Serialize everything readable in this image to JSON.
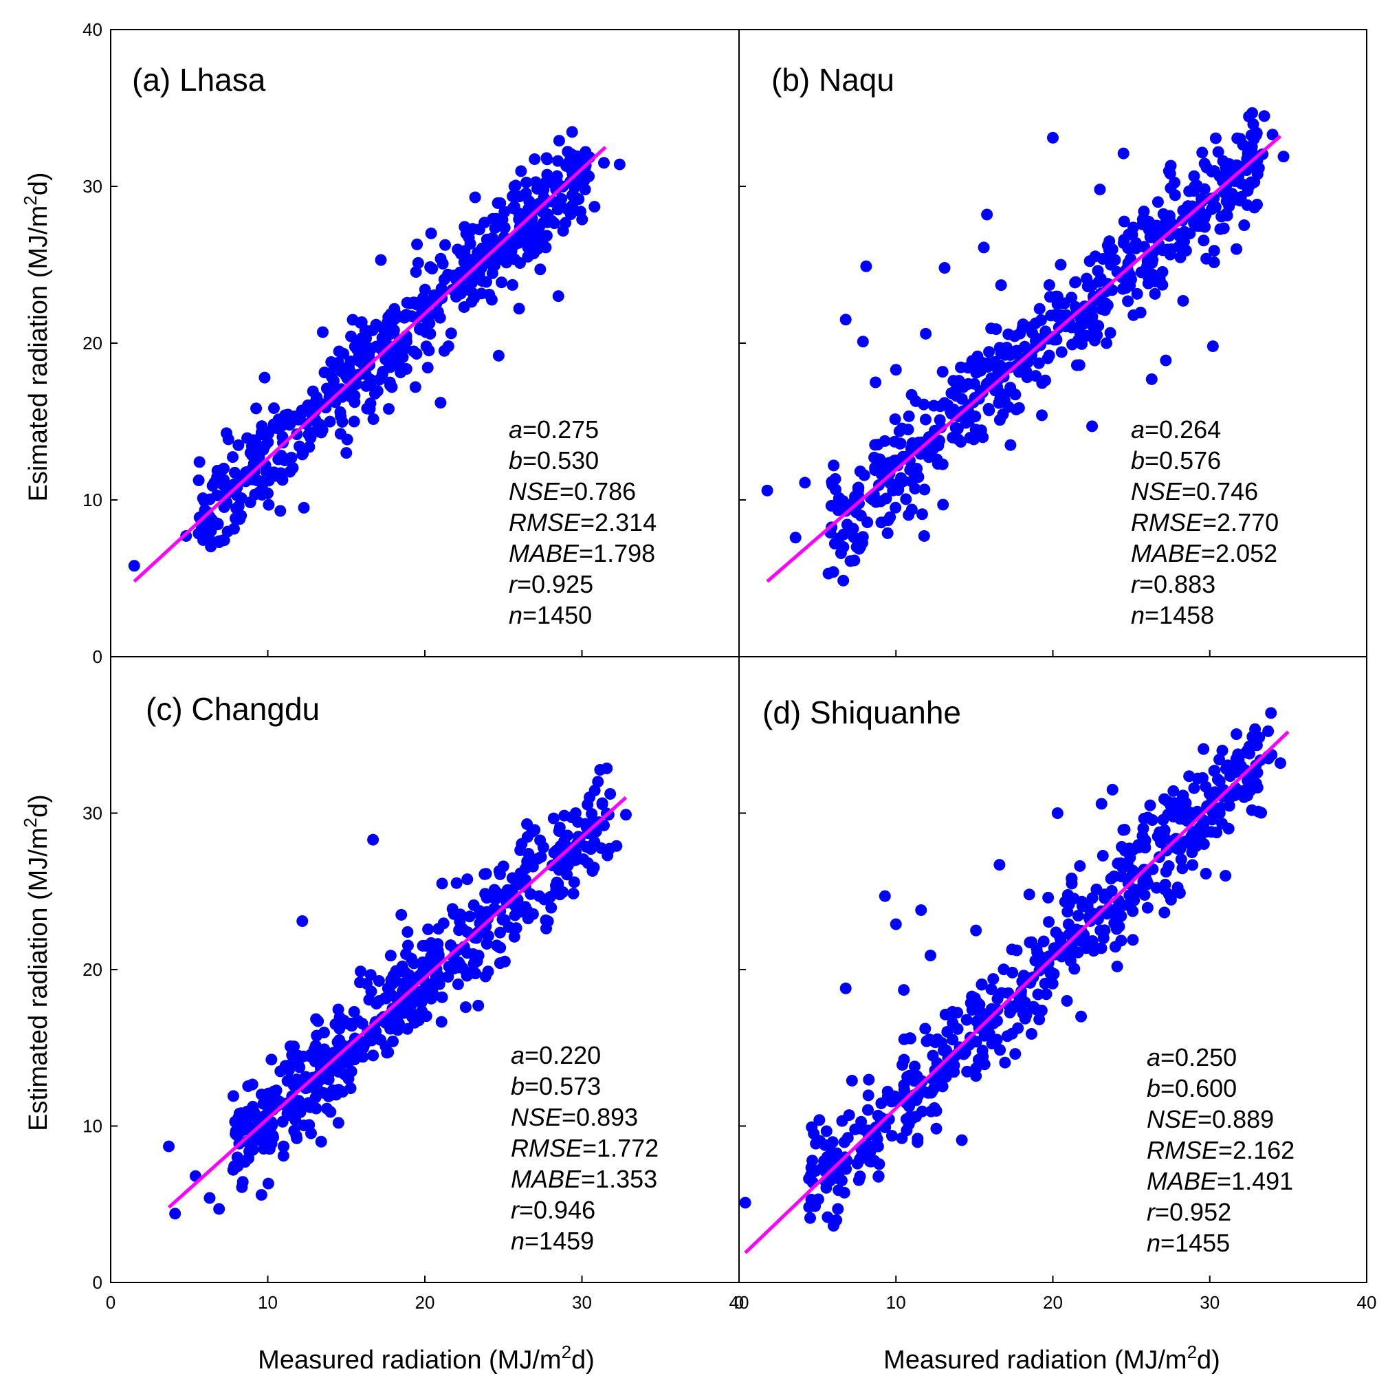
{
  "colors": {
    "points": "#0000ff",
    "fit_line": "#ff00ff",
    "axes": "#000000",
    "background": "#ffffff"
  },
  "axis_titles": {
    "x": {
      "pre": "Measured radiation (MJ/m",
      "sup": "2",
      "post": "d)"
    },
    "y_top": {
      "pre": "Esimated radiation (MJ/m",
      "sup": "2",
      "post": "d)"
    },
    "y_bottom": {
      "pre": "Estimated radiation (MJ/m",
      "sup": "2",
      "post": "d)"
    }
  },
  "chart_data": [
    {
      "type": "scatter",
      "id": "lhasa",
      "title": "(a) Lhasa",
      "xlim": [
        0,
        40
      ],
      "ylim": [
        0,
        40
      ],
      "xticks": [
        10,
        20,
        30
      ],
      "yticks": [
        10,
        20,
        30
      ],
      "xtick_labels": [
        "",
        "",
        ""
      ],
      "ytick_labels": [
        "0",
        "10",
        "20",
        "30",
        "40"
      ],
      "fit_line": {
        "x": [
          1.5,
          31.5
        ],
        "y": [
          4.8,
          32.5
        ]
      },
      "stats": [
        {
          "name": "a",
          "value": "=0.275"
        },
        {
          "name": "b",
          "value": "=0.530"
        },
        {
          "name": "NSE",
          "value": "=0.786"
        },
        {
          "name": "RMSE",
          "value": "=2.314"
        },
        {
          "name": "MABE",
          "value": "=1.798"
        },
        {
          "name": "r",
          "value": "=0.925"
        },
        {
          "name": "n",
          "value": "=1450"
        }
      ],
      "points": [
        [
          1.5,
          5.8
        ],
        [
          4.8,
          7.7
        ],
        [
          5.8,
          8.8
        ],
        [
          6.6,
          11.1
        ],
        [
          7.2,
          12.0
        ],
        [
          6.9,
          7.3
        ],
        [
          8.3,
          9.0
        ],
        [
          9.6,
          14.3
        ],
        [
          10.8,
          9.3
        ],
        [
          12.3,
          9.5
        ],
        [
          9.8,
          17.8
        ],
        [
          11.1,
          15.4
        ],
        [
          12.2,
          12.9
        ],
        [
          13.5,
          20.7
        ],
        [
          15.0,
          13.0
        ],
        [
          15.9,
          21.3
        ],
        [
          17.2,
          25.3
        ],
        [
          17.9,
          17.2
        ],
        [
          19.5,
          26.3
        ],
        [
          20.4,
          27.0
        ],
        [
          21.5,
          19.8
        ],
        [
          22.3,
          23.5
        ],
        [
          23.2,
          29.3
        ],
        [
          24.7,
          19.2
        ],
        [
          25.3,
          26.0
        ],
        [
          26.2,
          27.4
        ],
        [
          27.3,
          28.6
        ],
        [
          28.5,
          23.0
        ],
        [
          29.0,
          31.3
        ],
        [
          30.2,
          29.8
        ],
        [
          31.4,
          31.5
        ],
        [
          32.4,
          31.4
        ],
        [
          21.0,
          16.2
        ],
        [
          24.1,
          23.1
        ],
        [
          27.7,
          26.1
        ],
        [
          30.8,
          28.7
        ],
        [
          16.5,
          15.8
        ],
        [
          18.6,
          19.1
        ],
        [
          20.2,
          21.6
        ],
        [
          14.2,
          17.6
        ],
        [
          13.2,
          14.6
        ],
        [
          23.6,
          24.8
        ],
        [
          26.0,
          22.2
        ],
        [
          25.7,
          30.0
        ],
        [
          19.4,
          17.2
        ],
        [
          22.5,
          22.3
        ],
        [
          15.5,
          15.0
        ],
        [
          17.4,
          19.9
        ],
        [
          11.5,
          12.7
        ]
      ]
    },
    {
      "type": "scatter",
      "id": "naqu",
      "title": "(b) Naqu",
      "xlim": [
        0,
        40
      ],
      "ylim": [
        0,
        40
      ],
      "xticks": [
        10,
        20,
        30
      ],
      "yticks": [
        10,
        20,
        30
      ],
      "xtick_labels": [
        "",
        "",
        ""
      ],
      "ytick_labels": [],
      "fit_line": {
        "x": [
          1.8,
          34.5
        ],
        "y": [
          4.8,
          33.2
        ]
      },
      "stats": [
        {
          "name": "a",
          "value": "=0.264"
        },
        {
          "name": "b",
          "value": "=0.576"
        },
        {
          "name": "NSE",
          "value": "=0.746"
        },
        {
          "name": "RMSE",
          "value": "=2.770"
        },
        {
          "name": "MABE",
          "value": "=2.052"
        },
        {
          "name": "r",
          "value": "=0.883"
        },
        {
          "name": "n",
          "value": "=1458"
        }
      ],
      "points": [
        [
          1.8,
          10.6
        ],
        [
          3.6,
          7.6
        ],
        [
          4.2,
          11.1
        ],
        [
          5.7,
          5.3
        ],
        [
          6.5,
          6.6
        ],
        [
          7.1,
          6.1
        ],
        [
          7.5,
          7.0
        ],
        [
          6.8,
          21.5
        ],
        [
          8.1,
          24.9
        ],
        [
          7.9,
          20.1
        ],
        [
          9.5,
          8.7
        ],
        [
          10.0,
          18.3
        ],
        [
          11.0,
          16.7
        ],
        [
          11.8,
          7.7
        ],
        [
          13.0,
          9.7
        ],
        [
          13.1,
          24.8
        ],
        [
          15.6,
          26.1
        ],
        [
          15.8,
          28.2
        ],
        [
          20.0,
          33.1
        ],
        [
          23.0,
          29.8
        ],
        [
          22.5,
          14.7
        ],
        [
          24.5,
          32.1
        ],
        [
          26.3,
          17.7
        ],
        [
          27.2,
          18.9
        ],
        [
          29.2,
          28.6
        ],
        [
          30.2,
          19.8
        ],
        [
          33.0,
          33.4
        ],
        [
          34.0,
          33.3
        ],
        [
          34.7,
          31.9
        ],
        [
          31.7,
          26.0
        ],
        [
          28.3,
          22.7
        ],
        [
          17.3,
          13.5
        ],
        [
          19.3,
          15.4
        ],
        [
          21.2,
          21.0
        ],
        [
          24.8,
          25.1
        ],
        [
          26.7,
          29.0
        ],
        [
          18.1,
          21.2
        ],
        [
          15.0,
          17.4
        ],
        [
          12.8,
          15.1
        ],
        [
          10.3,
          13.6
        ],
        [
          9.0,
          12.5
        ],
        [
          8.7,
          17.5
        ],
        [
          11.9,
          20.6
        ],
        [
          14.3,
          17.2
        ],
        [
          16.3,
          18.8
        ],
        [
          20.5,
          25.0
        ],
        [
          22.7,
          22.8
        ],
        [
          25.8,
          28.4
        ],
        [
          29.8,
          31.2
        ],
        [
          32.5,
          30.0
        ],
        [
          23.6,
          26.5
        ],
        [
          21.7,
          18.6
        ],
        [
          16.7,
          23.7
        ]
      ]
    },
    {
      "type": "scatter",
      "id": "changdu",
      "title": "(c) Changdu",
      "xlim": [
        0,
        40
      ],
      "ylim": [
        0,
        40
      ],
      "xticks": [
        10,
        20,
        30
      ],
      "yticks": [
        10,
        20,
        30
      ],
      "xtick_labels": [
        "0",
        "10",
        "20",
        "30",
        "40"
      ],
      "ytick_labels": [
        "0",
        "10",
        "20",
        "30"
      ],
      "fit_line": {
        "x": [
          3.7,
          32.8
        ],
        "y": [
          4.8,
          31.0
        ]
      },
      "stats": [
        {
          "name": "a",
          "value": "=0.220"
        },
        {
          "name": "b",
          "value": "=0.573"
        },
        {
          "name": "NSE",
          "value": "=0.893"
        },
        {
          "name": "RMSE",
          "value": "=1.772"
        },
        {
          "name": "MABE",
          "value": "=1.353"
        },
        {
          "name": "r",
          "value": "=0.946"
        },
        {
          "name": "n",
          "value": "=1459"
        }
      ],
      "points": [
        [
          3.7,
          8.7
        ],
        [
          4.1,
          4.4
        ],
        [
          5.4,
          6.8
        ],
        [
          6.3,
          5.4
        ],
        [
          6.9,
          4.7
        ],
        [
          7.8,
          7.2
        ],
        [
          9.6,
          5.6
        ],
        [
          11.0,
          8.1
        ],
        [
          12.2,
          23.1
        ],
        [
          16.7,
          28.3
        ],
        [
          13.4,
          9.0
        ],
        [
          14.6,
          13.8
        ],
        [
          15.5,
          17.3
        ],
        [
          17.5,
          16.6
        ],
        [
          18.5,
          23.5
        ],
        [
          19.3,
          20.4
        ],
        [
          20.5,
          20.2
        ],
        [
          22.6,
          17.6
        ],
        [
          23.4,
          17.7
        ],
        [
          24.5,
          24.6
        ],
        [
          25.7,
          22.1
        ],
        [
          26.4,
          25.3
        ],
        [
          27.4,
          27.2
        ],
        [
          28.5,
          27.0
        ],
        [
          29.6,
          30.0
        ],
        [
          30.7,
          29.5
        ],
        [
          31.7,
          29.9
        ],
        [
          32.2,
          27.9
        ],
        [
          32.8,
          29.9
        ],
        [
          25.0,
          26.6
        ],
        [
          22.4,
          20.1
        ],
        [
          19.8,
          17.1
        ],
        [
          16.8,
          15.7
        ],
        [
          14.1,
          12.0
        ],
        [
          11.4,
          10.7
        ],
        [
          9.0,
          8.8
        ],
        [
          8.2,
          10.8
        ],
        [
          10.8,
          13.5
        ],
        [
          13.2,
          16.7
        ],
        [
          16.3,
          19.1
        ],
        [
          18.9,
          22.4
        ],
        [
          21.1,
          25.5
        ],
        [
          23.8,
          26.1
        ],
        [
          26.5,
          29.3
        ],
        [
          28.6,
          24.8
        ],
        [
          24.8,
          21.4
        ],
        [
          20.4,
          21.7
        ],
        [
          17.1,
          18.0
        ],
        [
          12.7,
          11.2
        ]
      ]
    },
    {
      "type": "scatter",
      "id": "shiquanhe",
      "title": "(d) Shiquanhe",
      "xlim": [
        0,
        40
      ],
      "ylim": [
        0,
        40
      ],
      "xticks": [
        10,
        20,
        30
      ],
      "yticks": [
        10,
        20,
        30
      ],
      "xtick_labels": [
        "0",
        "10",
        "20",
        "30",
        "40"
      ],
      "ytick_labels": [],
      "fit_line": {
        "x": [
          0.4,
          35.0
        ],
        "y": [
          1.9,
          35.2
        ]
      },
      "stats": [
        {
          "name": "a",
          "value": "=0.250"
        },
        {
          "name": "b",
          "value": "=0.600"
        },
        {
          "name": "NSE",
          "value": "=0.889"
        },
        {
          "name": "RMSE",
          "value": "=2.162"
        },
        {
          "name": "MABE",
          "value": "=1.491"
        },
        {
          "name": "r",
          "value": "=0.952"
        },
        {
          "name": "n",
          "value": "=1455"
        }
      ],
      "points": [
        [
          0.4,
          5.1
        ],
        [
          4.6,
          5.3
        ],
        [
          5.5,
          7.1
        ],
        [
          6.3,
          4.7
        ],
        [
          6.8,
          18.8
        ],
        [
          7.2,
          12.9
        ],
        [
          8.1,
          8.7
        ],
        [
          8.9,
          6.8
        ],
        [
          9.3,
          24.7
        ],
        [
          10.0,
          22.9
        ],
        [
          10.5,
          18.7
        ],
        [
          11.6,
          23.8
        ],
        [
          12.2,
          20.9
        ],
        [
          14.2,
          9.1
        ],
        [
          15.1,
          22.5
        ],
        [
          16.6,
          26.7
        ],
        [
          18.1,
          17.2
        ],
        [
          18.5,
          24.8
        ],
        [
          20.3,
          30.0
        ],
        [
          21.8,
          17.0
        ],
        [
          23.1,
          30.6
        ],
        [
          23.8,
          31.5
        ],
        [
          25.1,
          21.9
        ],
        [
          26.2,
          30.5
        ],
        [
          27.4,
          24.8
        ],
        [
          28.5,
          28.1
        ],
        [
          29.6,
          34.1
        ],
        [
          30.1,
          28.8
        ],
        [
          31.3,
          31.0
        ],
        [
          32.0,
          33.0
        ],
        [
          33.9,
          36.4
        ],
        [
          34.5,
          33.2
        ],
        [
          33.1,
          30.1
        ],
        [
          31.0,
          26.0
        ],
        [
          28.1,
          24.9
        ],
        [
          25.9,
          26.0
        ],
        [
          22.6,
          21.2
        ],
        [
          20.9,
          18.0
        ],
        [
          17.4,
          15.9
        ],
        [
          15.1,
          13.2
        ],
        [
          12.8,
          13.7
        ],
        [
          10.9,
          10.6
        ],
        [
          8.7,
          9.9
        ],
        [
          13.6,
          17.3
        ],
        [
          16.2,
          19.4
        ],
        [
          19.0,
          21.1
        ],
        [
          21.2,
          25.8
        ],
        [
          24.6,
          27.6
        ],
        [
          27.1,
          30.9
        ],
        [
          29.0,
          31.6
        ],
        [
          30.8,
          34.0
        ],
        [
          24.1,
          20.2
        ],
        [
          19.7,
          24.6
        ]
      ]
    }
  ]
}
